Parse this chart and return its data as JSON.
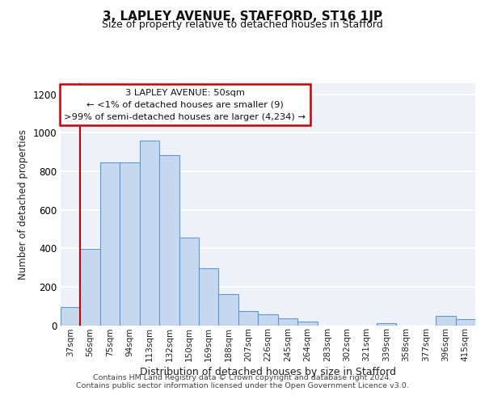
{
  "title": "3, LAPLEY AVENUE, STAFFORD, ST16 1JP",
  "subtitle": "Size of property relative to detached houses in Stafford",
  "xlabel": "Distribution of detached houses by size in Stafford",
  "ylabel": "Number of detached properties",
  "bar_labels": [
    "37sqm",
    "56sqm",
    "75sqm",
    "94sqm",
    "113sqm",
    "132sqm",
    "150sqm",
    "169sqm",
    "188sqm",
    "207sqm",
    "226sqm",
    "245sqm",
    "264sqm",
    "283sqm",
    "302sqm",
    "321sqm",
    "339sqm",
    "358sqm",
    "377sqm",
    "396sqm",
    "415sqm"
  ],
  "bar_values": [
    95,
    395,
    845,
    845,
    960,
    885,
    455,
    295,
    160,
    75,
    55,
    35,
    20,
    0,
    0,
    0,
    10,
    0,
    0,
    50,
    30
  ],
  "bar_color": "#c5d8f0",
  "bar_edge_color": "#5b9bd5",
  "red_line_index": 1,
  "annotation_title": "3 LAPLEY AVENUE: 50sqm",
  "annotation_line1": "← <1% of detached houses are smaller (9)",
  "annotation_line2": ">99% of semi-detached houses are larger (4,234) →",
  "annotation_box_color": "#ffffff",
  "annotation_box_edge": "#cc0000",
  "ylim": [
    0,
    1260
  ],
  "yticks": [
    0,
    200,
    400,
    600,
    800,
    1000,
    1200
  ],
  "footer1": "Contains HM Land Registry data © Crown copyright and database right 2024.",
  "footer2": "Contains public sector information licensed under the Open Government Licence v3.0.",
  "bg_color": "#eef2f8",
  "grid_color": "#ffffff",
  "fig_bg": "#ffffff"
}
